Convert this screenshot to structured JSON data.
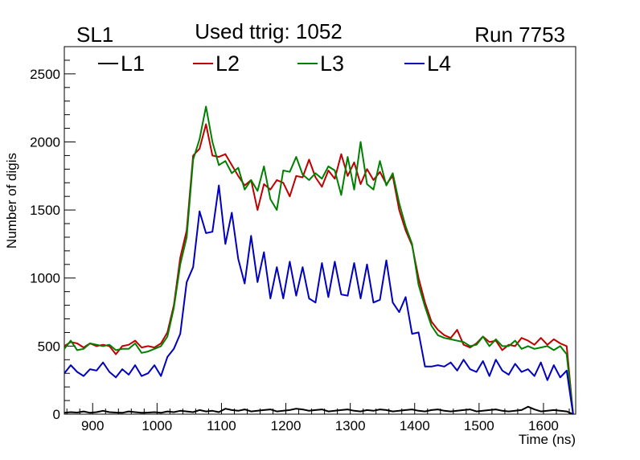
{
  "header": {
    "left": "SL1",
    "center": "Used ttrig: 1052",
    "right": "Run 7753"
  },
  "chart_data": {
    "type": "line",
    "title": "Used ttrig: 1052",
    "xlabel": "Time (ns)",
    "ylabel": "Number of digis",
    "xlim": [
      856,
      1650
    ],
    "ylim": [
      0,
      2700
    ],
    "xticks": [
      900,
      1000,
      1100,
      1200,
      1300,
      1400,
      1500,
      1600
    ],
    "yticks": [
      0,
      500,
      1000,
      1500,
      2000,
      2500
    ],
    "grid": false,
    "legend": "top",
    "x": [
      856,
      866,
      876,
      886,
      896,
      906,
      916,
      926,
      936,
      946,
      956,
      966,
      976,
      986,
      996,
      1006,
      1016,
      1026,
      1036,
      1046,
      1056,
      1066,
      1076,
      1086,
      1096,
      1106,
      1116,
      1126,
      1136,
      1146,
      1156,
      1166,
      1176,
      1186,
      1196,
      1206,
      1216,
      1226,
      1236,
      1246,
      1256,
      1266,
      1276,
      1286,
      1296,
      1306,
      1316,
      1326,
      1336,
      1346,
      1356,
      1366,
      1376,
      1386,
      1396,
      1406,
      1416,
      1426,
      1436,
      1446,
      1456,
      1466,
      1476,
      1486,
      1496,
      1506,
      1516,
      1526,
      1536,
      1546,
      1556,
      1566,
      1576,
      1586,
      1596,
      1606,
      1616,
      1626,
      1636,
      1646
    ],
    "series": [
      {
        "name": "L1",
        "color": "#000000",
        "values": [
          10,
          15,
          12,
          20,
          10,
          15,
          25,
          15,
          12,
          10,
          20,
          15,
          10,
          12,
          15,
          10,
          20,
          15,
          25,
          20,
          15,
          30,
          20,
          25,
          15,
          40,
          30,
          25,
          35,
          20,
          25,
          30,
          35,
          20,
          25,
          30,
          40,
          35,
          25,
          30,
          35,
          20,
          25,
          30,
          35,
          25,
          20,
          30,
          25,
          35,
          30,
          20,
          25,
          30,
          35,
          25,
          20,
          30,
          35,
          25,
          20,
          25,
          30,
          35,
          20,
          25,
          30,
          35,
          25,
          20,
          25,
          30,
          55,
          35,
          20,
          25,
          30,
          25,
          20,
          0
        ]
      },
      {
        "name": "L2",
        "color": "#c00000",
        "values": [
          500,
          530,
          520,
          490,
          520,
          500,
          510,
          500,
          440,
          500,
          510,
          540,
          490,
          500,
          490,
          520,
          600,
          800,
          1150,
          1350,
          1900,
          1950,
          2130,
          1900,
          1890,
          1910,
          1830,
          1750,
          1680,
          1720,
          1500,
          1690,
          1650,
          1720,
          1700,
          1600,
          1750,
          1740,
          1870,
          1740,
          1670,
          1790,
          1730,
          1910,
          1750,
          1850,
          1690,
          1800,
          1720,
          1780,
          1690,
          1750,
          1500,
          1350,
          1240,
          1000,
          820,
          680,
          620,
          580,
          560,
          620,
          510,
          490,
          520,
          570,
          530,
          540,
          470,
          510,
          500,
          560,
          540,
          510,
          560,
          510,
          550,
          520,
          500,
          0
        ]
      },
      {
        "name": "L3",
        "color": "#008000",
        "values": [
          480,
          540,
          470,
          480,
          520,
          510,
          500,
          510,
          470,
          480,
          480,
          520,
          450,
          460,
          480,
          500,
          570,
          780,
          1100,
          1300,
          1870,
          2020,
          2260,
          2000,
          1830,
          1860,
          1770,
          1810,
          1650,
          1720,
          1640,
          1820,
          1580,
          1500,
          1790,
          1780,
          1890,
          1760,
          1720,
          1770,
          1730,
          1820,
          1790,
          1610,
          1890,
          1650,
          2000,
          1690,
          1650,
          1860,
          1680,
          1770,
          1550,
          1380,
          1250,
          950,
          790,
          650,
          580,
          560,
          550,
          540,
          530,
          500,
          510,
          570,
          500,
          550,
          500,
          500,
          540,
          480,
          500,
          480,
          490,
          500,
          470,
          500,
          440,
          0
        ]
      },
      {
        "name": "L4",
        "color": "#0000c0",
        "values": [
          300,
          360,
          310,
          280,
          330,
          320,
          380,
          310,
          270,
          330,
          290,
          360,
          280,
          300,
          360,
          280,
          420,
          480,
          590,
          970,
          1080,
          1490,
          1330,
          1340,
          1680,
          1250,
          1480,
          1140,
          960,
          1310,
          970,
          1190,
          850,
          1080,
          850,
          1120,
          870,
          1080,
          850,
          820,
          1110,
          860,
          1120,
          880,
          870,
          1110,
          850,
          1100,
          820,
          840,
          1130,
          820,
          750,
          860,
          590,
          600,
          350,
          350,
          360,
          350,
          380,
          320,
          400,
          330,
          310,
          390,
          280,
          400,
          320,
          290,
          370,
          310,
          330,
          280,
          380,
          250,
          360,
          270,
          320,
          0
        ]
      }
    ]
  }
}
